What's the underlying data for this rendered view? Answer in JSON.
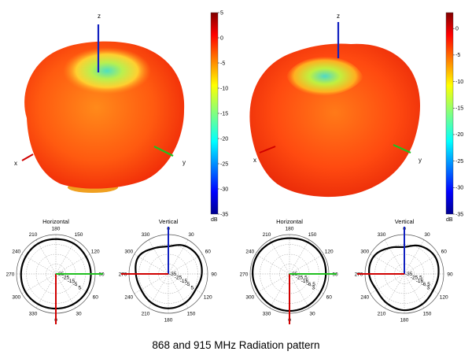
{
  "caption": "868 and 915 MHz Radiation pattern",
  "colors": {
    "x_axis": "#d00000",
    "y_axis": "#20c020",
    "z_axis": "#1020c0",
    "pattern_line": "#000000"
  },
  "chart_data": [
    {
      "type": "surface3d",
      "label_x": "x",
      "label_y": "y",
      "label_z": "z",
      "colorbar": {
        "unit": "dB",
        "ticks": [
          5,
          0,
          -5,
          -10,
          -15,
          -20,
          -25,
          -30,
          -35
        ],
        "range": [
          -35,
          5
        ],
        "colormap": "jet"
      }
    },
    {
      "type": "surface3d",
      "label_x": "x",
      "label_y": "y",
      "label_z": "z",
      "colorbar": {
        "unit": "dB",
        "ticks": [
          0,
          -5,
          -10,
          -15,
          -20,
          -25,
          -30,
          -35
        ],
        "range": [
          -35,
          3
        ],
        "colormap": "jet"
      }
    },
    {
      "type": "polar",
      "title": "Horizontal",
      "angle_labels": [
        "180",
        "150",
        "120",
        "90",
        "60",
        "30",
        "0",
        "330",
        "300",
        "270",
        "240",
        "210"
      ],
      "radial_labels": [
        "-35",
        "-25",
        "-15",
        "-5",
        "5"
      ],
      "rlim": [
        -35,
        5
      ],
      "theta_deg": [
        0,
        30,
        60,
        90,
        120,
        150,
        180,
        210,
        240,
        270,
        300,
        330
      ],
      "gain_db": [
        0.4,
        0.8,
        0.3,
        0.6,
        0.9,
        0.5,
        0.2,
        0.6,
        0.9,
        0.4,
        0.3,
        0.7
      ]
    },
    {
      "type": "polar",
      "title": "Vertical",
      "angle_labels": [
        "0",
        "30",
        "60",
        "90",
        "120",
        "150",
        "180",
        "210",
        "240",
        "270",
        "300",
        "330"
      ],
      "radial_labels": [
        "-35",
        "-25",
        "-15",
        "-5",
        "5"
      ],
      "rlim": [
        -35,
        5
      ],
      "theta_deg": [
        0,
        30,
        60,
        90,
        120,
        150,
        180,
        210,
        240,
        270,
        300,
        330
      ],
      "gain_db": [
        -7,
        -2,
        0,
        -1,
        -3,
        -1,
        0,
        -1,
        -3,
        -2,
        0,
        -5
      ]
    },
    {
      "type": "polar",
      "title": "Horizontal",
      "angle_labels": [
        "180",
        "150",
        "120",
        "90",
        "60",
        "30",
        "0",
        "330",
        "300",
        "270",
        "240",
        "210"
      ],
      "radial_labels": [
        "-35",
        "-25.5",
        "-16",
        "-6.5",
        "3"
      ],
      "rlim": [
        -35,
        3
      ],
      "theta_deg": [
        0,
        30,
        60,
        90,
        120,
        150,
        180,
        210,
        240,
        270,
        300,
        330
      ],
      "gain_db": [
        -0.5,
        0.3,
        0.8,
        0.1,
        -0.3,
        0.5,
        0.7,
        0.2,
        -0.2,
        0.6,
        0.9,
        0.1
      ]
    },
    {
      "type": "polar",
      "title": "Vertical",
      "angle_labels": [
        "0",
        "30",
        "60",
        "90",
        "120",
        "150",
        "180",
        "210",
        "240",
        "270",
        "300",
        "330"
      ],
      "radial_labels": [
        "-35",
        "-25.5",
        "-16",
        "-6.5",
        "3"
      ],
      "rlim": [
        -35,
        3
      ],
      "theta_deg": [
        0,
        30,
        60,
        90,
        120,
        150,
        180,
        210,
        240,
        270,
        300,
        330
      ],
      "gain_db": [
        -9,
        -4,
        -1,
        -2,
        -3,
        -1,
        0,
        -2,
        -4,
        -1,
        -1,
        -6
      ]
    }
  ]
}
